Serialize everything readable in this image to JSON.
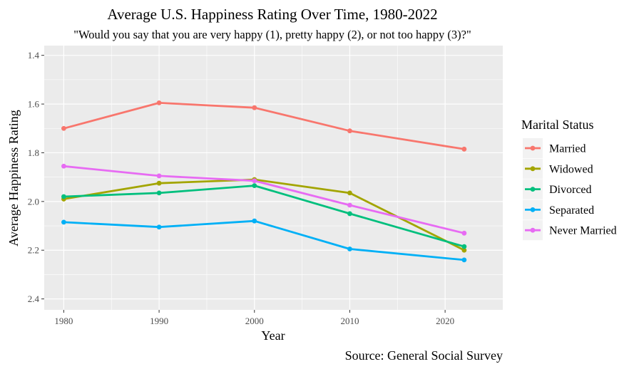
{
  "chart_data": {
    "type": "line",
    "title": "Average U.S. Happiness Rating Over Time, 1980-2022",
    "subtitle": "\"Would you say that you are very happy (1), pretty happy (2), or not too happy (3)?\"",
    "xlabel": "Year",
    "ylabel": "Average Happiness Rating",
    "caption": "Source: General Social Survey",
    "legend_title": "Marital Status",
    "legend_position": "right",
    "x": [
      1980,
      1990,
      2000,
      2010,
      2022
    ],
    "x_ticks": [
      1980,
      1990,
      2000,
      2010,
      2020
    ],
    "xlim": [
      1977.95,
      2026.05
    ],
    "y_ticks": [
      1.4,
      1.6,
      1.8,
      2.0,
      2.2,
      2.4
    ],
    "y_tick_labels": [
      "1.4",
      "1.6",
      "1.8",
      "2.0",
      "2.2",
      "2.4"
    ],
    "ylim": [
      1.36,
      2.445
    ],
    "y_reversed": true,
    "grid": true,
    "series": [
      {
        "name": "Married",
        "color": "#F8766D",
        "values": [
          1.7,
          1.595,
          1.615,
          1.71,
          1.785
        ]
      },
      {
        "name": "Widowed",
        "color": "#A3A500",
        "values": [
          1.99,
          1.925,
          1.91,
          1.965,
          2.2
        ]
      },
      {
        "name": "Divorced",
        "color": "#00BF7D",
        "values": [
          1.98,
          1.965,
          1.935,
          2.05,
          2.185
        ]
      },
      {
        "name": "Separated",
        "color": "#00B0F6",
        "values": [
          2.085,
          2.105,
          2.08,
          2.195,
          2.24
        ]
      },
      {
        "name": "Never Married",
        "color": "#E76BF3",
        "values": [
          1.855,
          1.895,
          1.915,
          2.015,
          2.13
        ]
      }
    ]
  }
}
